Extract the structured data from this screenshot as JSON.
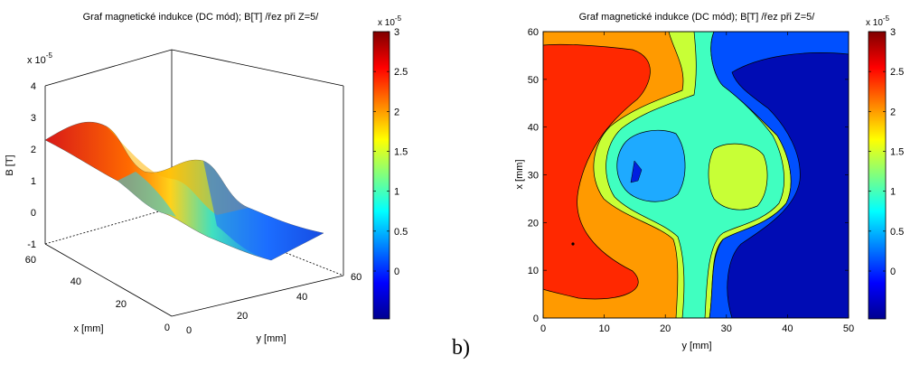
{
  "panel_b_label": "b)",
  "chart_data": [
    {
      "type": "surface",
      "title": "Graf magnetické indukce (DC mód); B[T] /řez při Z=5/",
      "xlabel": "y [mm]",
      "ylabel": "x [mm]",
      "zlabel": "B [T]",
      "z_exponent": "x 10",
      "z_exponent_power": "-5",
      "y_ticks": [
        "0",
        "20",
        "40",
        "60"
      ],
      "x_ticks": [
        "0",
        "20",
        "40",
        "60"
      ],
      "z_ticks": [
        "-1",
        "0",
        "1",
        "2",
        "3",
        "4"
      ],
      "zlim": [
        -1,
        4
      ],
      "colorbar": {
        "exponent": "x 10",
        "exponent_power": "-5",
        "ticks": [
          "0",
          "0.5",
          "1",
          "1.5",
          "2",
          "2.5",
          "3"
        ],
        "range": [
          -0.6,
          3.0
        ]
      },
      "colormap": "jet",
      "surface_profile": {
        "y": [
          0,
          10,
          20,
          30,
          40,
          50,
          60
        ],
        "B": [
          2.5,
          2.6,
          1.2,
          0.2,
          1.1,
          0.0,
          -0.5
        ]
      }
    },
    {
      "type": "contourf",
      "title": "Graf magnetické indukce (DC mód); B[T] /řez při Z=5/",
      "xlabel": "y [mm]",
      "ylabel": "x [mm]",
      "x_ticks": [
        "0",
        "10",
        "20",
        "30",
        "40",
        "50"
      ],
      "y_ticks": [
        "0",
        "10",
        "20",
        "30",
        "40",
        "50",
        "60"
      ],
      "xlim": [
        0,
        50
      ],
      "ylim": [
        0,
        60
      ],
      "colorbar": {
        "exponent": "x 10",
        "exponent_power": "-5",
        "ticks": [
          "0",
          "0.5",
          "1",
          "1.5",
          "2",
          "2.5",
          "3"
        ],
        "range": [
          -0.6,
          3.0
        ]
      },
      "colormap": "jet",
      "levels": [
        -0.6,
        -0.3,
        0.2,
        0.5,
        1.0,
        1.5,
        2.0,
        2.5
      ],
      "regions": [
        {
          "level": 2.5,
          "points": [
            [
              0,
              0
            ],
            [
              20,
              0
            ],
            [
              20,
              60
            ],
            [
              0,
              60
            ]
          ]
        }
      ]
    }
  ]
}
